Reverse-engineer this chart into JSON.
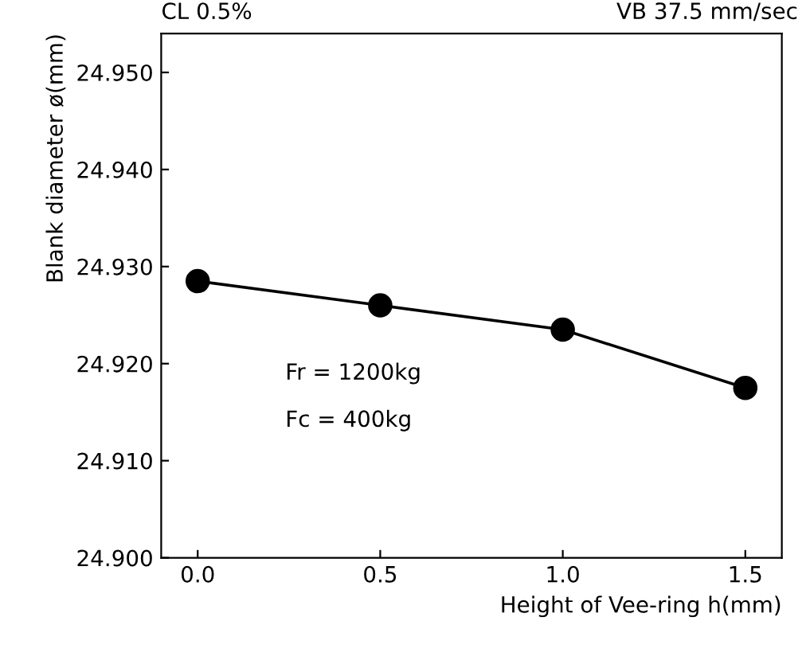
{
  "chart_data": {
    "type": "line",
    "xlabel": "Height of Vee-ring h(mm)",
    "ylabel": "Blank diameter ø(mm)",
    "x": [
      0.0,
      0.5,
      1.0,
      1.5
    ],
    "series": [
      {
        "color": "#000000",
        "values": [
          24.9285,
          24.926,
          24.9235,
          24.9175
        ]
      }
    ],
    "xlim": [
      -0.1,
      1.6
    ],
    "xticks": [
      {
        "value": 0,
        "label": "0.0"
      },
      0.5,
      {
        "value": 1,
        "label": "1.0"
      },
      1.5
    ],
    "ylim": [
      24.9,
      24.954
    ],
    "yticks": [
      {
        "value": 24.9,
        "label": "24.900"
      },
      {
        "value": 24.91,
        "label": "24.910"
      },
      {
        "value": 24.92,
        "label": "24.920"
      },
      {
        "value": 24.93,
        "label": "24.930"
      },
      {
        "value": 24.94,
        "label": "24.940"
      },
      {
        "value": 24.95,
        "label": "24.950"
      }
    ],
    "marker": "circle",
    "line_style": "solid",
    "grid": false,
    "legend": false,
    "annotations": [
      "CL 0.5%",
      "VB 37.5 mm/sec",
      "Fr = 1200kg",
      "Fc = 400kg"
    ]
  }
}
